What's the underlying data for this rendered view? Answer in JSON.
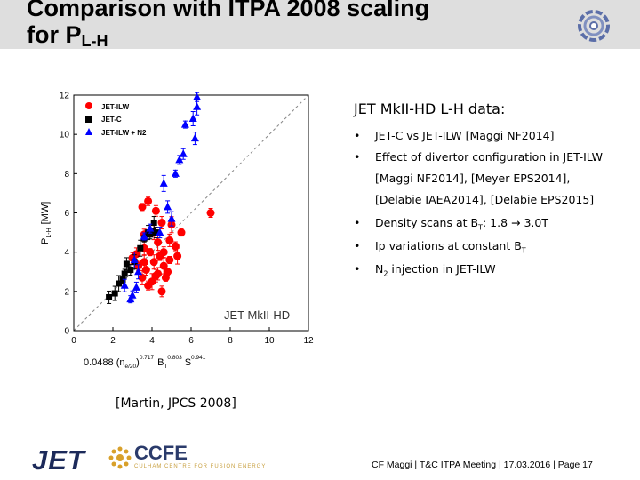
{
  "header": {
    "title_line1": "Comparison with ITPA 2008 scaling",
    "title_line2_main": "for P",
    "title_line2_sub": "L-H"
  },
  "colors": {
    "header_bg": "#dedede",
    "jet_ilw": "#ff0000",
    "jet_c": "#000000",
    "jet_ilw_n2": "#0000ff",
    "legend_n2_sub": "2"
  },
  "chart_data": {
    "type": "scatter",
    "title": "",
    "xlabel": "0.0488 (n_e/20)^0.717 B_T^0.803 S^0.941",
    "xlabel_main": "0.0488 (n",
    "xlabel_sub1": "e/20",
    "xlabel_mid1": ")",
    "xlabel_exp1": "0.717",
    "xlabel_mid2": "B",
    "xlabel_sub2": "T",
    "xlabel_exp2": "0.803",
    "xlabel_mid3": "S",
    "xlabel_exp3": "0.941",
    "ylabel_main": "P",
    "ylabel_sub": "L-H",
    "ylabel_unit": "[MW]",
    "xlim": [
      0,
      12
    ],
    "ylim": [
      0,
      12
    ],
    "x_ticks": [
      "0",
      "2",
      "4",
      "6",
      "8",
      "10",
      "12"
    ],
    "y_ticks": [
      "0",
      "2",
      "4",
      "6",
      "8",
      "10",
      "12"
    ],
    "annotation": "JET MkII-HD",
    "legend_placement": "top-left",
    "series": [
      {
        "name": "JET-ILW",
        "marker": "circle",
        "color": "#ff0000",
        "points": [
          [
            3.5,
            6.3
          ],
          [
            3.8,
            6.6
          ],
          [
            4.2,
            6.1
          ],
          [
            4.5,
            5.5
          ],
          [
            4.1,
            5.0
          ],
          [
            5.0,
            5.4
          ],
          [
            5.5,
            5.0
          ],
          [
            7.0,
            6.0
          ],
          [
            3.6,
            4.9
          ],
          [
            4.9,
            4.6
          ],
          [
            3.6,
            4.2
          ],
          [
            4.3,
            4.5
          ],
          [
            3.9,
            4.0
          ],
          [
            5.2,
            4.3
          ],
          [
            4.6,
            4.0
          ],
          [
            3.2,
            3.9
          ],
          [
            4.1,
            3.5
          ],
          [
            4.6,
            3.3
          ],
          [
            4.9,
            3.6
          ],
          [
            3.3,
            3.3
          ],
          [
            3.7,
            3.1
          ],
          [
            4.3,
            2.9
          ],
          [
            3.5,
            2.7
          ],
          [
            4.0,
            2.5
          ],
          [
            4.7,
            2.7
          ],
          [
            3.8,
            2.3
          ],
          [
            4.5,
            2.0
          ],
          [
            4.2,
            2.8
          ],
          [
            3.6,
            3.5
          ],
          [
            5.3,
            3.8
          ],
          [
            4.8,
            3.0
          ],
          [
            4.4,
            3.8
          ],
          [
            3.0,
            3.7
          ]
        ]
      },
      {
        "name": "JET-C",
        "marker": "square",
        "color": "#000000",
        "points": [
          [
            1.8,
            1.7
          ],
          [
            2.1,
            1.9
          ],
          [
            2.3,
            2.4
          ],
          [
            2.5,
            2.6
          ],
          [
            2.6,
            2.9
          ],
          [
            2.9,
            3.1
          ],
          [
            2.7,
            3.4
          ],
          [
            3.1,
            3.5
          ],
          [
            3.4,
            4.2
          ],
          [
            3.6,
            4.7
          ],
          [
            3.9,
            4.9
          ],
          [
            4.2,
            5.0
          ],
          [
            4.1,
            5.5
          ],
          [
            3.8,
            5.0
          ]
        ]
      },
      {
        "name": "JET-ILW + N2",
        "marker": "triangle",
        "color": "#0000ff",
        "points": [
          [
            2.9,
            1.6
          ],
          [
            3.0,
            1.8
          ],
          [
            3.2,
            2.2
          ],
          [
            2.6,
            2.3
          ],
          [
            3.3,
            3.0
          ],
          [
            3.1,
            3.6
          ],
          [
            3.6,
            4.8
          ],
          [
            3.9,
            5.2
          ],
          [
            4.4,
            5.0
          ],
          [
            4.8,
            6.3
          ],
          [
            5.0,
            5.7
          ],
          [
            4.6,
            7.5
          ],
          [
            5.2,
            8.0
          ],
          [
            5.4,
            8.7
          ],
          [
            5.6,
            9.0
          ],
          [
            6.2,
            9.8
          ],
          [
            6.1,
            10.8
          ],
          [
            6.3,
            11.4
          ],
          [
            5.7,
            10.5
          ],
          [
            6.3,
            11.9
          ]
        ]
      }
    ]
  },
  "right": {
    "heading": "JET MkII-HD L-H data:",
    "bullet_char": "•",
    "b1": "JET-C vs JET-ILW [Maggi NF2014]",
    "b2": "Effect of divertor configuration in JET-ILW",
    "b2_l2": "[Maggi NF2014], [Meyer EPS2014],",
    "b2_l3": "[Delabie IAEA2014], [Delabie EPS2015]",
    "b3_main": "Density scans at B",
    "b3_sub": "T",
    "b3_tail": ": 1.8 → 3.0T",
    "b4_main": "Ip variations at constant B",
    "b4_sub": "T",
    "b5_main": "N",
    "b5_sub": "2",
    "b5_tail": " injection in JET-ILW"
  },
  "citation": "[Martin, JPCS 2008]",
  "logos": {
    "jet": "JET",
    "ccfe": "CCFE",
    "ccfe_sub": "CULHAM CENTRE FOR FUSION ENERGY"
  },
  "footer": "CF Maggi | T&C ITPA Meeting | 17.03.2016 | Page 17"
}
